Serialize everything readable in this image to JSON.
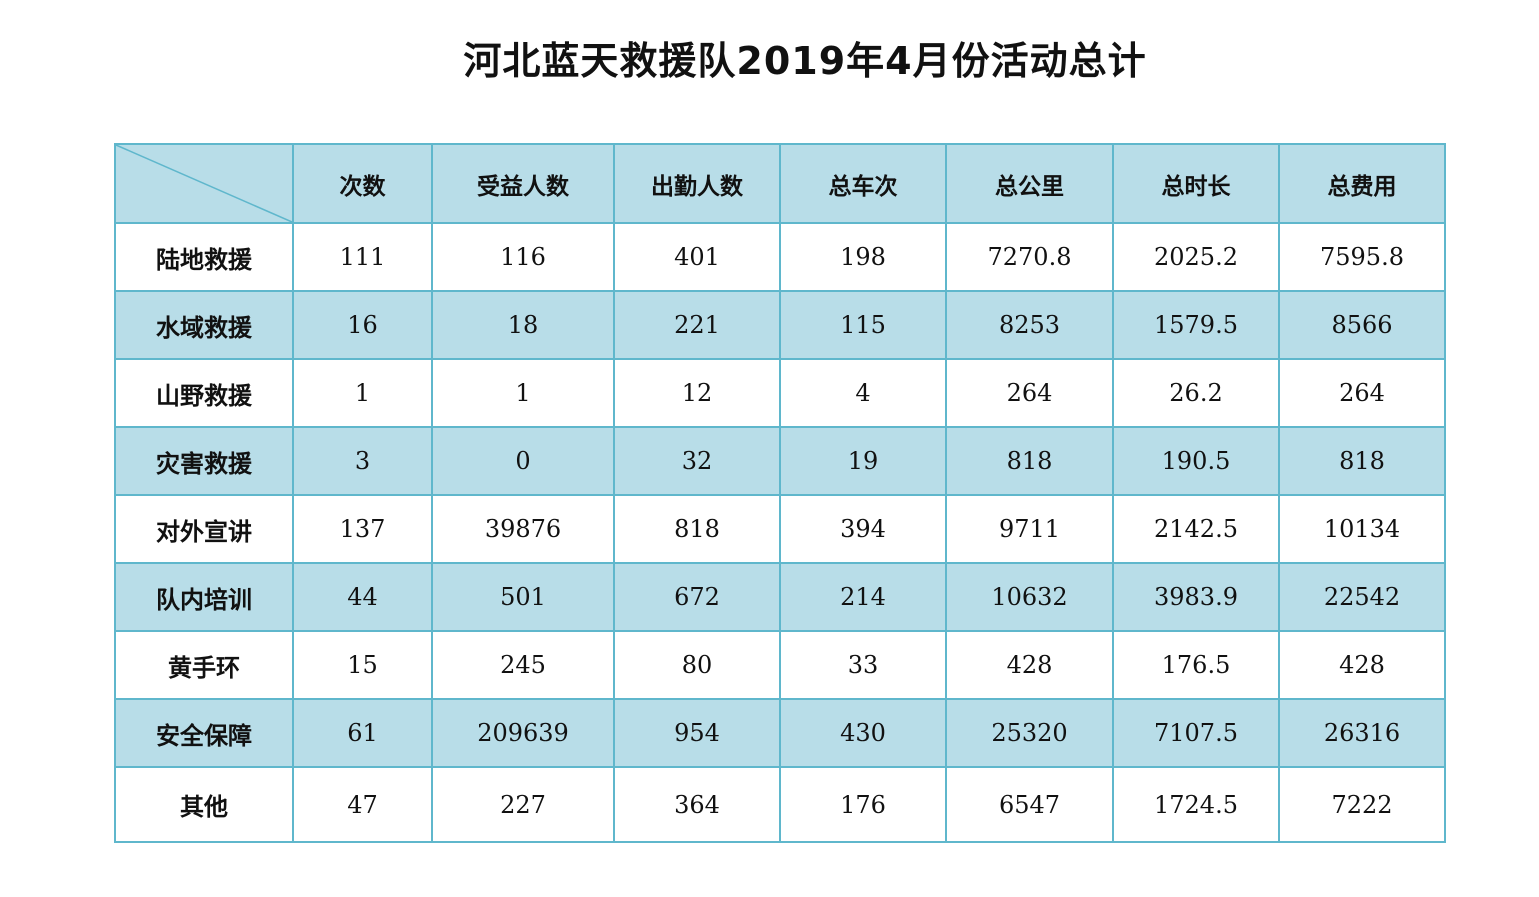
{
  "chart_data": {
    "type": "table",
    "title": "河北蓝天救援队2019年4月份活动总计",
    "columns": [
      "次数",
      "受益人数",
      "出勤人数",
      "总车次",
      "总公里",
      "总时长",
      "总费用"
    ],
    "rows": [
      {
        "label": "陆地救援",
        "values": [
          "111",
          "116",
          "401",
          "198",
          "7270.8",
          "2025.2",
          "7595.8"
        ]
      },
      {
        "label": "水域救援",
        "values": [
          "16",
          "18",
          "221",
          "115",
          "8253",
          "1579.5",
          "8566"
        ]
      },
      {
        "label": "山野救援",
        "values": [
          "1",
          "1",
          "12",
          "4",
          "264",
          "26.2",
          "264"
        ]
      },
      {
        "label": "灾害救援",
        "values": [
          "3",
          "0",
          "32",
          "19",
          "818",
          "190.5",
          "818"
        ]
      },
      {
        "label": "对外宣讲",
        "values": [
          "137",
          "39876",
          "818",
          "394",
          "9711",
          "2142.5",
          "10134"
        ]
      },
      {
        "label": "队内培训",
        "values": [
          "44",
          "501",
          "672",
          "214",
          "10632",
          "3983.9",
          "22542"
        ]
      },
      {
        "label": "黄手环",
        "values": [
          "15",
          "245",
          "80",
          "33",
          "428",
          "176.5",
          "428"
        ]
      },
      {
        "label": "安全保障",
        "values": [
          "61",
          "209639",
          "954",
          "430",
          "25320",
          "7107.5",
          "26316"
        ]
      },
      {
        "label": "其他",
        "values": [
          "47",
          "227",
          "364",
          "176",
          "6547",
          "1724.5",
          "7222"
        ]
      }
    ]
  },
  "colors": {
    "band": "#b8dde8",
    "border": "#5fb7cc",
    "text": "#111111"
  }
}
